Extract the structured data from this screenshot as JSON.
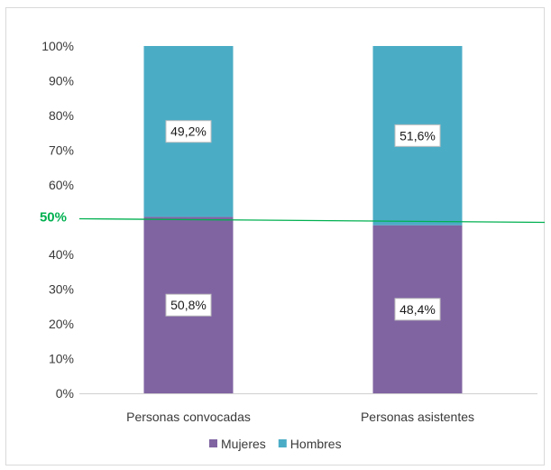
{
  "chart_data": {
    "type": "bar",
    "stacked": true,
    "percent_stacked": true,
    "categories": [
      "Personas convocadas",
      "Personas asistentes"
    ],
    "series": [
      {
        "name": "Mujeres",
        "values": [
          50.8,
          48.4
        ],
        "color": "#8064a2",
        "labels": [
          "50,8%",
          "48,4%"
        ]
      },
      {
        "name": "Hombres",
        "values": [
          49.2,
          51.6
        ],
        "color": "#4bacc6",
        "labels": [
          "49,2%",
          "51,6%"
        ]
      }
    ],
    "y_ticks": [
      "0%",
      "10%",
      "20%",
      "30%",
      "40%",
      "50%",
      "60%",
      "70%",
      "80%",
      "90%",
      "100%"
    ],
    "ylim": [
      0,
      100
    ],
    "reference_line": {
      "value": 50,
      "label": "50%",
      "color": "#00b050"
    },
    "grid": false,
    "legend_position": "bottom"
  }
}
